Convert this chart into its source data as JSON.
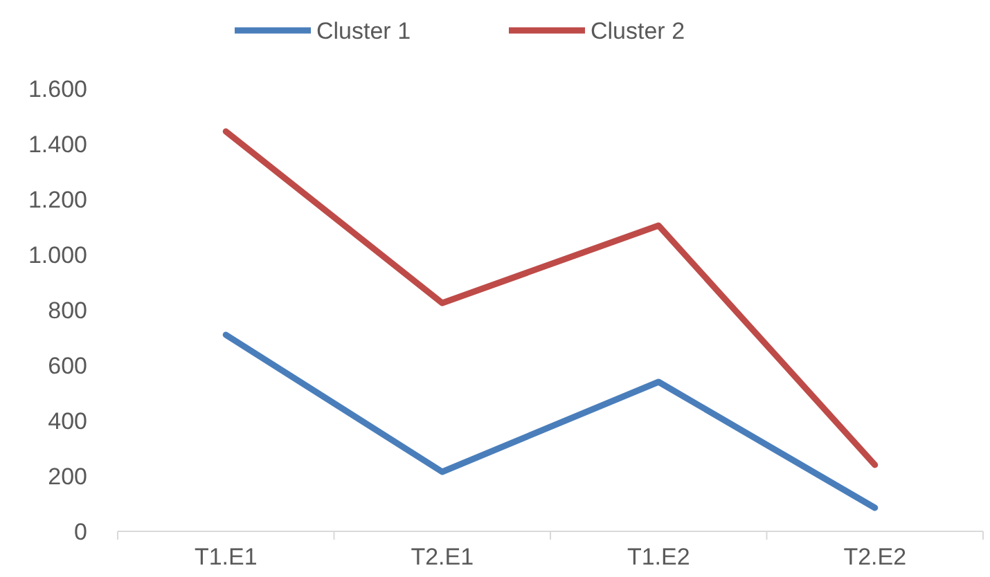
{
  "chart_data": {
    "type": "line",
    "categories": [
      "T1.E1",
      "T2.E1",
      "T1.E2",
      "T2.E2"
    ],
    "series": [
      {
        "name": "Cluster 1",
        "color": "#4a7ebb",
        "values": [
          710,
          215,
          540,
          85
        ]
      },
      {
        "name": "Cluster 2",
        "color": "#be4b48",
        "values": [
          1445,
          825,
          1105,
          240
        ]
      }
    ],
    "ylim": [
      0,
      1600
    ],
    "yticks": [
      0,
      {
        "value": 200,
        "label": "200"
      },
      400,
      600,
      800,
      {
        "value": 1000,
        "label": "1.000"
      },
      {
        "value": 1200,
        "label": "1.200"
      },
      {
        "value": 1400,
        "label": "1.400"
      },
      {
        "value": 1600,
        "label": "1.600"
      }
    ],
    "grid": false,
    "legend": "top",
    "marker": "none",
    "line_style": "solid"
  }
}
